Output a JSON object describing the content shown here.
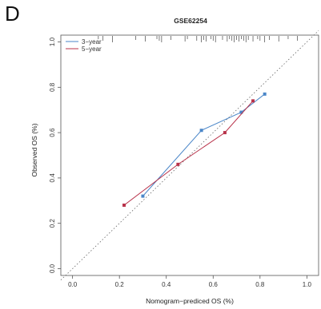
{
  "panel_label": "D",
  "chart_data": {
    "type": "line",
    "title": "GSE62254",
    "xlabel": "Nomogram−prediced OS (%)",
    "ylabel": "Observed OS (%)",
    "xlim": [
      -0.05,
      1.05
    ],
    "ylim": [
      -0.03,
      1.03
    ],
    "xticks": [
      0.0,
      0.2,
      0.4,
      0.6,
      0.8,
      1.0
    ],
    "yticks": [
      0.0,
      0.2,
      0.4,
      0.6,
      0.8,
      1.0
    ],
    "xtick_labels": [
      "0.0",
      "0.2",
      "0.4",
      "0.6",
      "0.8",
      "1.0"
    ],
    "ytick_labels": [
      "0.0",
      "0.2",
      "0.4",
      "0.6",
      "0.8",
      "1.0"
    ],
    "grid": false,
    "legend": "top-left",
    "reference_line": "diagonal-dotted",
    "series": [
      {
        "name": "3−year",
        "color": "#4a86c8",
        "x": [
          0.3,
          0.55,
          0.72,
          0.82
        ],
        "y": [
          0.32,
          0.61,
          0.69,
          0.77
        ]
      },
      {
        "name": "5−year",
        "color": "#b8324a",
        "x": [
          0.22,
          0.45,
          0.65,
          0.77
        ],
        "y": [
          0.28,
          0.46,
          0.6,
          0.74
        ]
      }
    ],
    "rug_x": [
      0.11,
      0.13,
      0.17,
      0.27,
      0.31,
      0.36,
      0.37,
      0.38,
      0.42,
      0.48,
      0.49,
      0.53,
      0.55,
      0.56,
      0.57,
      0.59,
      0.6,
      0.61,
      0.64,
      0.66,
      0.67,
      0.68,
      0.69,
      0.7,
      0.71,
      0.72,
      0.73,
      0.74,
      0.75,
      0.77,
      0.79,
      0.8,
      0.82,
      0.84,
      0.88,
      0.92,
      0.96
    ]
  }
}
